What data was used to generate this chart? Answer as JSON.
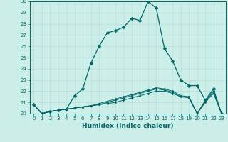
{
  "xlabel": "Humidex (Indice chaleur)",
  "ylabel": "",
  "bg_color": "#cceee8",
  "grid_color": "#b8ddd8",
  "line_color": "#006666",
  "xlim": [
    -0.5,
    23.5
  ],
  "ylim": [
    20,
    30
  ],
  "xticks": [
    0,
    1,
    2,
    3,
    4,
    5,
    6,
    7,
    8,
    9,
    10,
    11,
    12,
    13,
    14,
    15,
    16,
    17,
    18,
    19,
    20,
    21,
    22,
    23
  ],
  "yticks": [
    20,
    21,
    22,
    23,
    24,
    25,
    26,
    27,
    28,
    29,
    30
  ],
  "series": [
    [
      20.8,
      20.0,
      20.2,
      20.3,
      20.4,
      21.6,
      22.2,
      24.5,
      26.0,
      27.2,
      27.4,
      27.7,
      28.5,
      28.3,
      30.0,
      29.4,
      25.8,
      24.7,
      23.0,
      22.5,
      22.5,
      21.2,
      22.2,
      20.0
    ],
    [
      20.8,
      20.0,
      20.2,
      20.3,
      20.4,
      20.5,
      20.6,
      20.7,
      20.8,
      20.9,
      21.0,
      21.2,
      21.4,
      21.6,
      21.8,
      22.0,
      22.0,
      21.8,
      21.5,
      21.5,
      20.0,
      21.2,
      22.0,
      20.0
    ],
    [
      20.8,
      20.0,
      20.2,
      20.3,
      20.4,
      20.5,
      20.6,
      20.7,
      20.8,
      21.0,
      21.2,
      21.4,
      21.6,
      21.8,
      22.0,
      22.2,
      22.1,
      21.9,
      21.5,
      21.4,
      20.0,
      21.0,
      21.8,
      20.0
    ],
    [
      20.8,
      20.0,
      20.2,
      20.3,
      20.4,
      20.5,
      20.6,
      20.7,
      20.9,
      21.1,
      21.3,
      21.5,
      21.7,
      21.9,
      22.1,
      22.3,
      22.2,
      22.0,
      21.6,
      21.5,
      20.0,
      21.1,
      21.9,
      20.0
    ]
  ],
  "xlabel_fontsize": 6.5,
  "tick_fontsize": 5.0
}
